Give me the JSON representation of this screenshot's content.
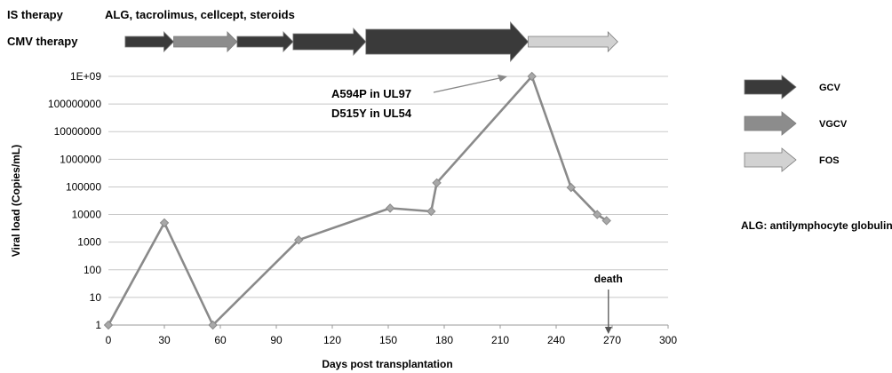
{
  "header": {
    "is_label": "IS therapy",
    "is_text": "ALG, tacrolimus, cellcept, steroids",
    "cmv_label": "CMV therapy"
  },
  "therapy_arrows": [
    {
      "drug": "GCV",
      "start": 9,
      "end": 35,
      "size": "normal"
    },
    {
      "drug": "VGCV",
      "start": 35,
      "end": 69,
      "size": "normal"
    },
    {
      "drug": "GCV",
      "start": 69,
      "end": 99,
      "size": "normal"
    },
    {
      "drug": "GCV",
      "start": 99,
      "end": 138,
      "size": "large"
    },
    {
      "drug": "GCV",
      "start": 138,
      "end": 225,
      "size": "xlarge"
    },
    {
      "drug": "FOS",
      "start": 225,
      "end": 273,
      "size": "normal"
    }
  ],
  "legend": {
    "items": [
      {
        "name": "GCV",
        "color": "#3a3a3a"
      },
      {
        "name": "VGCV",
        "color": "#8c8c8c"
      },
      {
        "name": "FOS",
        "color": "#d2d2d2"
      }
    ],
    "note": "ALG: antilymphocyte globuline"
  },
  "annotations": {
    "mutation_line1": "A594P in UL97",
    "mutation_line2": "D515Y in UL54",
    "death_label": "death",
    "death_day": 268
  },
  "chart_data": {
    "type": "line",
    "x_label": "Days post transplantation",
    "y_label": "Viral load (Copies/mL)",
    "x_range": [
      0,
      300
    ],
    "x_ticks": [
      0,
      30,
      60,
      90,
      120,
      150,
      180,
      210,
      240,
      270,
      300
    ],
    "y_scale": "log",
    "y_range": [
      1,
      1000000000
    ],
    "y_tick_labels": [
      "1",
      "10",
      "100",
      "1000",
      "10000",
      "100000",
      "1000000",
      "10000000",
      "100000000",
      "1E+09"
    ],
    "grid": "horizontal",
    "series": [
      {
        "color": "#8a8a8a",
        "points": [
          {
            "x": 0,
            "y": 1
          },
          {
            "x": 30,
            "y": 5000
          },
          {
            "x": 56,
            "y": 1
          },
          {
            "x": 102,
            "y": 1200
          },
          {
            "x": 151,
            "y": 17000
          },
          {
            "x": 173,
            "y": 13000
          },
          {
            "x": 176,
            "y": 140000
          },
          {
            "x": 227,
            "y": 1000000000
          },
          {
            "x": 248,
            "y": 95000
          },
          {
            "x": 262,
            "y": 10000
          },
          {
            "x": 267,
            "y": 6000
          }
        ]
      }
    ]
  }
}
